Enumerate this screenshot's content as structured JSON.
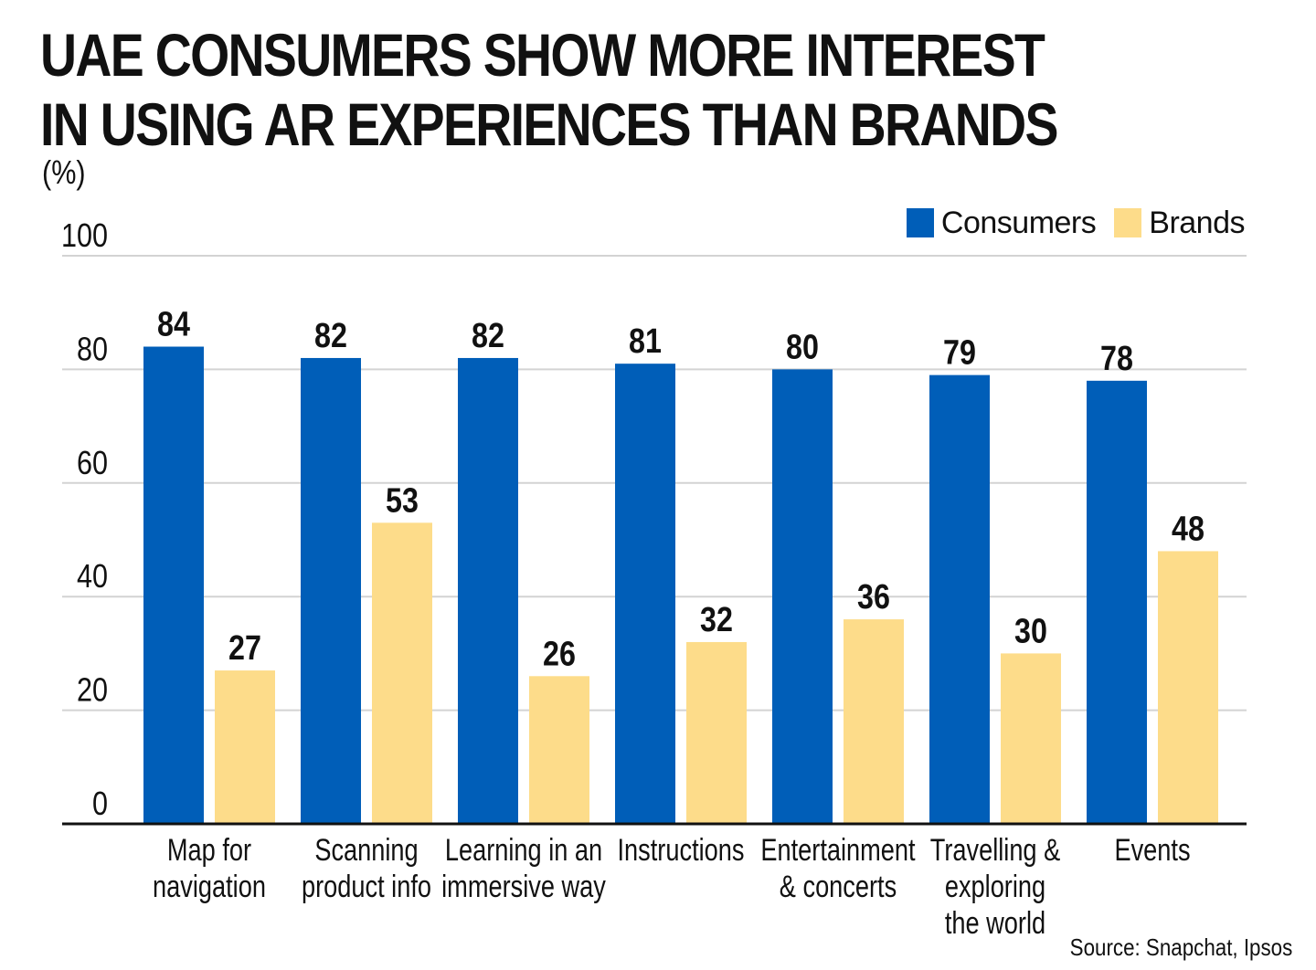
{
  "title": "UAE CONSUMERS SHOW MORE INTEREST IN USING AR EXPERIENCES THAN BRANDS",
  "unit_label": "(%)",
  "source": "Source: Snapchat, Ipsos",
  "colors": {
    "consumers": "#005EB8",
    "brands": "#FDDC8A",
    "grid": "#d3d3d3",
    "axis": "#111111"
  },
  "chart_data": {
    "type": "bar",
    "title": "UAE CONSUMERS SHOW MORE INTEREST IN USING AR EXPERIENCES THAN BRANDS",
    "ylabel": "(%)",
    "xlabel": "",
    "ylim": [
      0,
      100
    ],
    "yticks": [
      0,
      20,
      40,
      60,
      80,
      100
    ],
    "grid": true,
    "legend_position": "top-right",
    "categories": [
      [
        "Map for",
        "navigation"
      ],
      [
        "Scanning",
        "product info"
      ],
      [
        "Learning in an",
        "immersive way"
      ],
      [
        "Instructions"
      ],
      [
        "Entertainment",
        "& concerts"
      ],
      [
        "Travelling &",
        "exploring",
        "the world"
      ],
      [
        "Events"
      ]
    ],
    "series": [
      {
        "name": "Consumers",
        "values": [
          84,
          82,
          82,
          81,
          80,
          79,
          78
        ]
      },
      {
        "name": "Brands",
        "values": [
          27,
          53,
          26,
          32,
          36,
          30,
          48
        ]
      }
    ]
  }
}
